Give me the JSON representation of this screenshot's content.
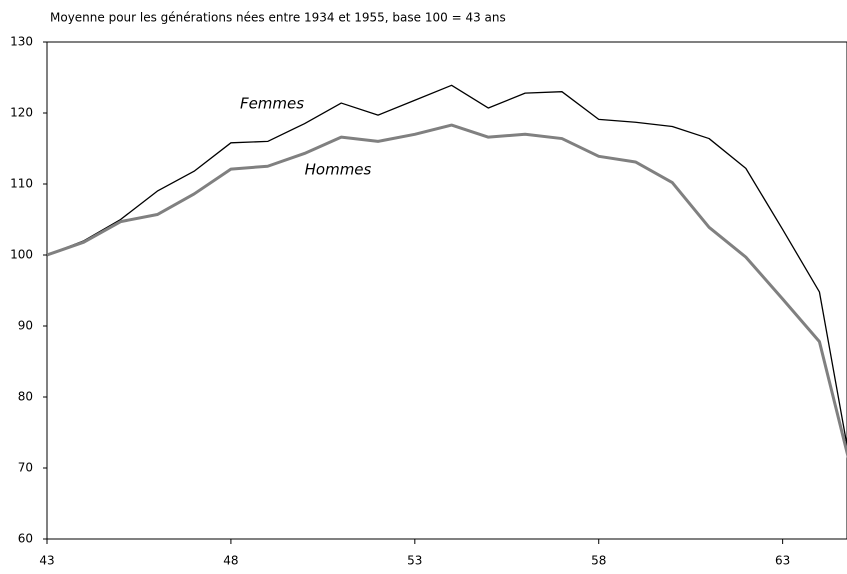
{
  "chart_data": {
    "type": "line",
    "title": "Moyenne pour les générations nées entre 1934 et 1955, base 100 = 43 ans",
    "x": [
      43,
      44,
      45,
      46,
      47,
      48,
      49,
      50,
      51,
      52,
      53,
      54,
      55,
      56,
      57,
      58,
      59,
      60,
      61,
      62,
      63,
      64,
      65
    ],
    "series": [
      {
        "name": "Femmes",
        "color": "#000000",
        "values": [
          100,
          102,
          105,
          109,
          111.8,
          115.8,
          116,
          118.5,
          121.4,
          119.7,
          121.8,
          123.9,
          120.7,
          122.8,
          123,
          119.1,
          118.7,
          118.1,
          116.4,
          112.2,
          103.6,
          94.8,
          66
        ]
      },
      {
        "name": "Hommes",
        "color": "#808080",
        "values": [
          100,
          101.8,
          104.7,
          105.7,
          108.6,
          112.1,
          112.5,
          114.3,
          116.6,
          116,
          117,
          118.3,
          116.6,
          117,
          116.4,
          113.9,
          113.1,
          110.2,
          103.9,
          99.7,
          93.8,
          87.8,
          67
        ]
      }
    ],
    "xlim": [
      43,
      64.75
    ],
    "xticks": [
      43,
      48,
      53,
      58,
      63
    ],
    "ylim": [
      60,
      130
    ],
    "yticks": [
      60,
      70,
      80,
      90,
      100,
      110,
      120,
      130
    ],
    "grid": false
  }
}
